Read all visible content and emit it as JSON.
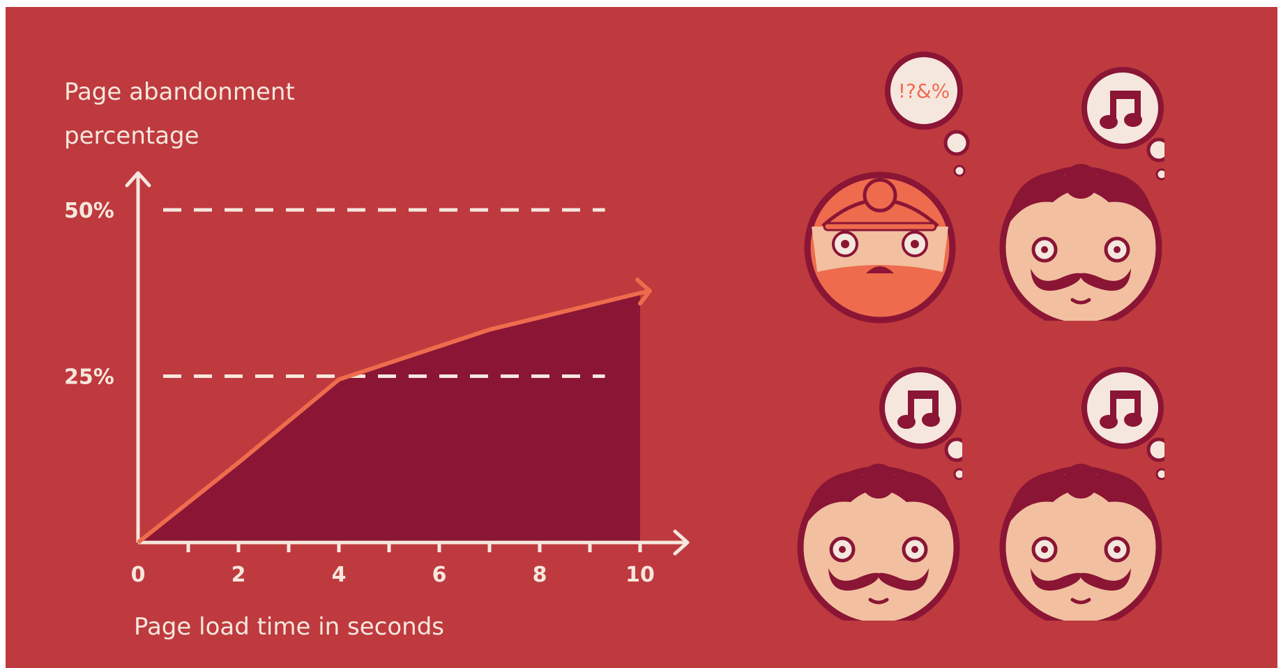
{
  "colors": {
    "panel": "#be3a3e",
    "area_fill": "#8a1535",
    "line": "#ee6b4d",
    "axis": "#f6e7de",
    "skin": "#f2c0a0",
    "hair": "#8a1535",
    "angry_face": "#ee6b4d",
    "bubble": "#f6e7de"
  },
  "chart_data": {
    "type": "area",
    "ylabel_line1": "Page abandonment",
    "ylabel_line2": "percentage",
    "xlabel": "Page load time in seconds",
    "x_ticks": [
      "0",
      "2",
      "4",
      "6",
      "8",
      "10"
    ],
    "y_ticks": [
      "25%",
      "50%"
    ],
    "xlim": [
      0,
      10
    ],
    "ylim": [
      0,
      50
    ],
    "grid": "dashed at 25% and 50%",
    "x": [
      0,
      2,
      4,
      7,
      10
    ],
    "y": [
      0,
      12,
      24.5,
      32,
      37.5
    ]
  },
  "faces": [
    {
      "mood": "frustrated",
      "thought": "!?&%"
    },
    {
      "mood": "happy",
      "thought": "music-note-icon"
    },
    {
      "mood": "happy",
      "thought": "music-note-icon"
    },
    {
      "mood": "happy",
      "thought": "music-note-icon"
    }
  ]
}
